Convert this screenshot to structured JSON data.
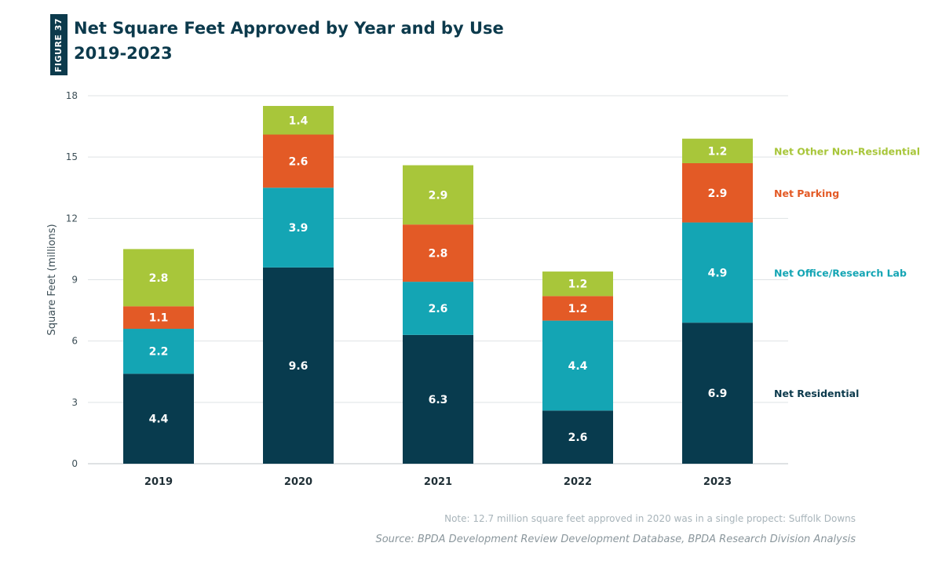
{
  "figure_label": "FIGURE 37",
  "title_line1": "Net Square Feet Approved by Year and by Use",
  "title_line2": "2019-2023",
  "note": "Note: 12.7 million square feet approved in 2020 was in a single propect: Suffolk Downs",
  "source": "Source: BPDA Development Review Development Database, BPDA Research Division Analysis",
  "chart_data": {
    "type": "bar",
    "stacked": true,
    "categories": [
      "2019",
      "2020",
      "2021",
      "2022",
      "2023"
    ],
    "ylabel": "Square Feet (millions)",
    "xlabel": "",
    "ylim": [
      0,
      18
    ],
    "yticks": [
      0,
      3,
      6,
      9,
      12,
      15,
      18
    ],
    "grid": true,
    "legend_position": "right, labels beside 2023 bar",
    "series": [
      {
        "name": "Net Residential",
        "color": "#083b4e",
        "values": [
          4.4,
          9.6,
          6.3,
          2.6,
          6.9
        ]
      },
      {
        "name": "Net Office/Research Lab",
        "color": "#14a5b4",
        "values": [
          2.2,
          3.9,
          2.6,
          4.4,
          4.9
        ]
      },
      {
        "name": "Net Parking",
        "color": "#e35a26",
        "values": [
          1.1,
          2.6,
          2.8,
          1.2,
          2.9
        ]
      },
      {
        "name": "Net Other Non-Residential",
        "color": "#a8c63a",
        "values": [
          2.8,
          1.4,
          2.9,
          1.2,
          1.2
        ]
      }
    ]
  }
}
